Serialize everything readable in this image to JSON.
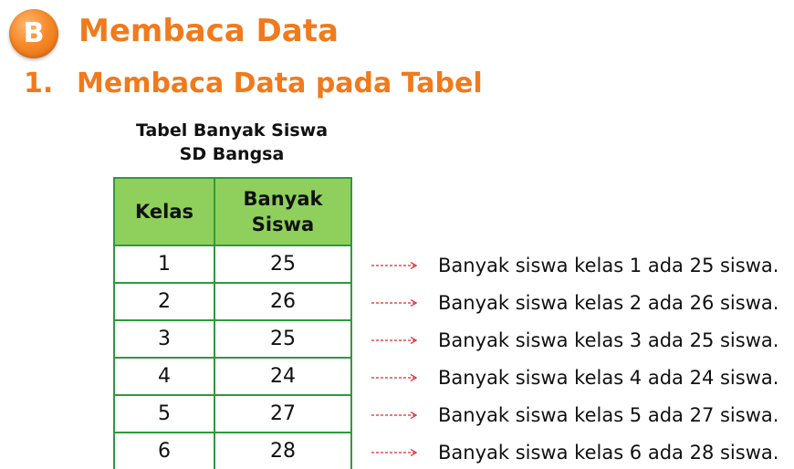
{
  "section": {
    "badge": "B",
    "title": "Membaca Data"
  },
  "subsection": {
    "number": "1.",
    "title": "Membaca Data pada Tabel"
  },
  "table": {
    "caption_line1": "Tabel Banyak Siswa",
    "caption_line2": "SD Bangsa",
    "headers": {
      "kelas": "Kelas",
      "banyak_line1": "Banyak",
      "banyak_line2": "Siswa"
    },
    "rows": [
      {
        "kelas": "1",
        "banyak": "25"
      },
      {
        "kelas": "2",
        "banyak": "26"
      },
      {
        "kelas": "3",
        "banyak": "25"
      },
      {
        "kelas": "4",
        "banyak": "24"
      },
      {
        "kelas": "5",
        "banyak": "27"
      },
      {
        "kelas": "6",
        "banyak": "28"
      }
    ]
  },
  "statements": [
    "Banyak siswa kelas 1 ada 25 siswa.",
    "Banyak siswa kelas 2 ada 26 siswa.",
    "Banyak siswa kelas 3 ada 25 siswa.",
    "Banyak siswa kelas 4 ada 24 siswa.",
    "Banyak siswa kelas 5 ada 27 siswa.",
    "Banyak siswa kelas 6 ada 28 siswa."
  ],
  "colors": {
    "accent": "#f07a1c",
    "table_header": "#8ed05b",
    "table_border": "#2e9a3c",
    "arrow": "#e0262c"
  }
}
